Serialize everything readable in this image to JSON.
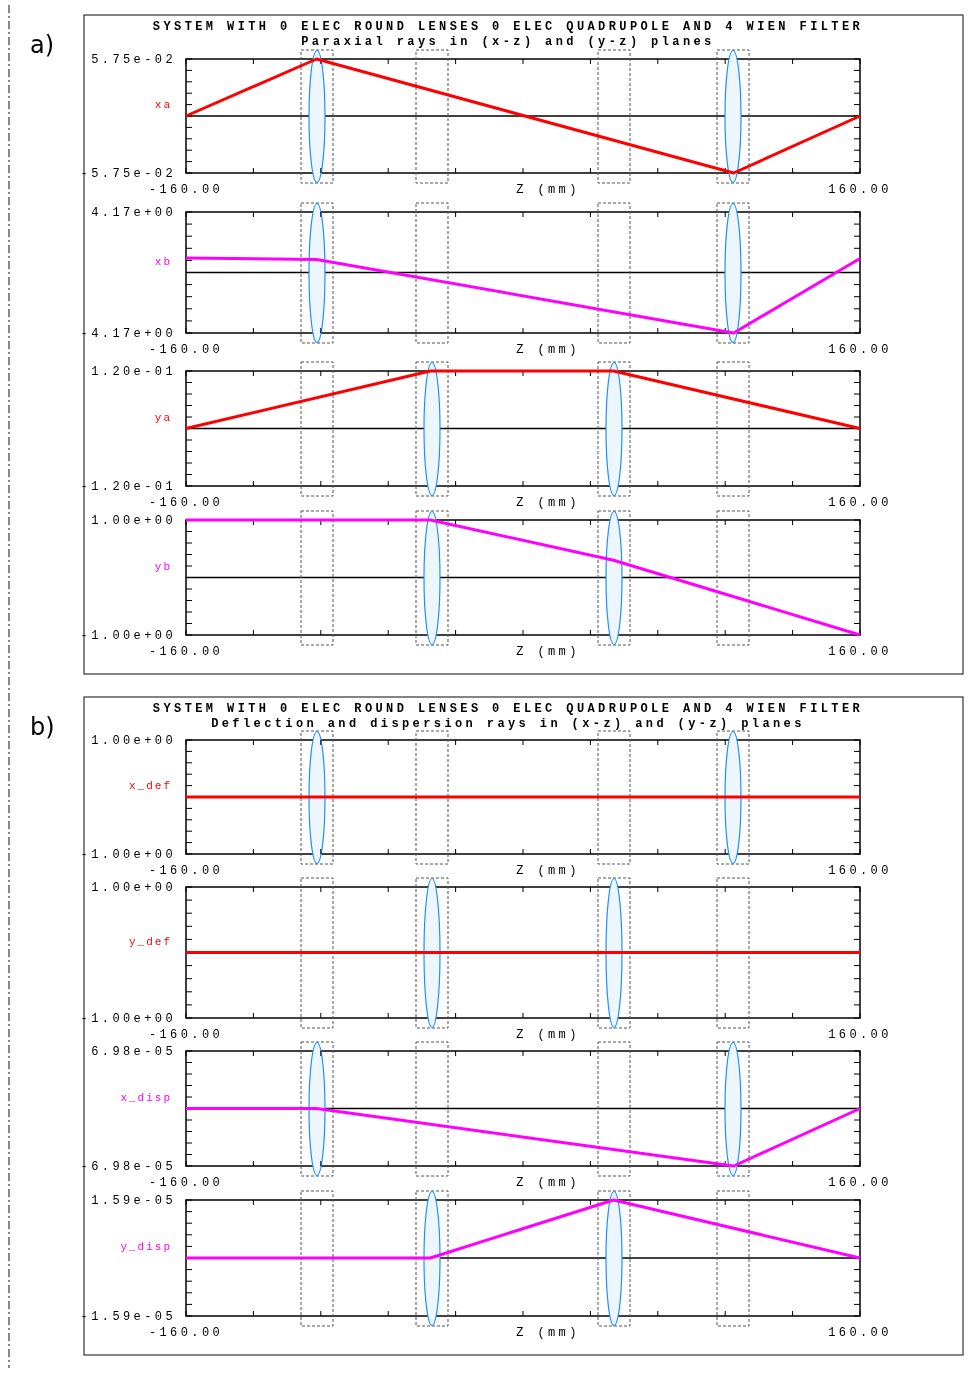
{
  "chart_data": [
    {
      "type": "line",
      "title": "SYSTEM WITH 0 ELEC ROUND LENSES  0 ELEC QUADRUPOLE AND 4 WIEN FILTER",
      "subtitle": "Paraxial rays in (x-z) and (y-z) planes",
      "annotations": [
        "a)"
      ],
      "xlabel": "Z (mm)",
      "xlim": [
        -160,
        160
      ],
      "xticks": [
        {
          "value": -160,
          "label": "-160.00"
        },
        {
          "value": -128,
          "label": null
        },
        {
          "value": -96,
          "label": null
        },
        {
          "value": -64,
          "label": null
        },
        {
          "value": -32,
          "label": null
        },
        {
          "value": 0,
          "label": null
        },
        {
          "value": 32,
          "label": null
        },
        {
          "value": 64,
          "label": null
        },
        {
          "value": 96,
          "label": null
        },
        {
          "value": 128,
          "label": null
        },
        {
          "value": 160,
          "label": "160.00"
        }
      ],
      "ylim": [
        -0.0575,
        0.0575
      ],
      "yticks": [
        {
          "value": -0.0575,
          "label": "-5.75e-02"
        },
        {
          "value": -0.046,
          "label": null
        },
        {
          "value": -0.0345,
          "label": null
        },
        {
          "value": -0.023,
          "label": null
        },
        {
          "value": -0.0115,
          "label": null
        },
        {
          "value": 0,
          "label": null
        },
        {
          "value": 0.0115,
          "label": null
        },
        {
          "value": 0.023,
          "label": null
        },
        {
          "value": 0.0345,
          "label": null
        },
        {
          "value": 0.046,
          "label": null
        },
        {
          "value": 0.0575,
          "label": "5.75e-02"
        }
      ],
      "series": [
        {
          "name": "xa",
          "color": "#ff0000",
          "x": [
            -160,
            -98,
            100,
            160
          ],
          "values": [
            0,
            0.0575,
            -0.0575,
            0
          ]
        }
      ]
    },
    {
      "type": "line",
      "xlabel": "Z (mm)",
      "xlim": [
        -160,
        160
      ],
      "xticks": [
        {
          "value": -160,
          "label": "-160.00"
        },
        {
          "value": -128,
          "label": null
        },
        {
          "value": -96,
          "label": null
        },
        {
          "value": -64,
          "label": null
        },
        {
          "value": -32,
          "label": null
        },
        {
          "value": 0,
          "label": null
        },
        {
          "value": 32,
          "label": null
        },
        {
          "value": 64,
          "label": null
        },
        {
          "value": 96,
          "label": null
        },
        {
          "value": 128,
          "label": null
        },
        {
          "value": 160,
          "label": "160.00"
        }
      ],
      "ylim": [
        -4.17,
        4.17
      ],
      "yticks": [
        {
          "value": -4.17,
          "label": "-4.17e+00"
        },
        {
          "value": -3.336,
          "label": null
        },
        {
          "value": -2.502,
          "label": null
        },
        {
          "value": -1.668,
          "label": null
        },
        {
          "value": -0.834,
          "label": null
        },
        {
          "value": 0,
          "label": null
        },
        {
          "value": 0.834,
          "label": null
        },
        {
          "value": 1.668,
          "label": null
        },
        {
          "value": 2.502,
          "label": null
        },
        {
          "value": 3.336,
          "label": null
        },
        {
          "value": 4.17,
          "label": "4.17e+00"
        }
      ],
      "series": [
        {
          "name": "xb",
          "color": "#ff00ff",
          "x": [
            -160,
            -98,
            100,
            160
          ],
          "values": [
            1.0,
            0.9,
            -4.17,
            0.96
          ]
        }
      ]
    },
    {
      "type": "line",
      "xlabel": "Z (mm)",
      "xlim": [
        -160,
        160
      ],
      "xticks": [
        {
          "value": -160,
          "label": "-160.00"
        },
        {
          "value": -128,
          "label": null
        },
        {
          "value": -96,
          "label": null
        },
        {
          "value": -64,
          "label": null
        },
        {
          "value": -32,
          "label": null
        },
        {
          "value": 0,
          "label": null
        },
        {
          "value": 32,
          "label": null
        },
        {
          "value": 64,
          "label": null
        },
        {
          "value": 96,
          "label": null
        },
        {
          "value": 128,
          "label": null
        },
        {
          "value": 160,
          "label": "160.00"
        }
      ],
      "ylim": [
        -0.12,
        0.12
      ],
      "yticks": [
        {
          "value": -0.12,
          "label": "-1.20e-01"
        },
        {
          "value": -0.096,
          "label": null
        },
        {
          "value": -0.072,
          "label": null
        },
        {
          "value": -0.048,
          "label": null
        },
        {
          "value": -0.024,
          "label": null
        },
        {
          "value": 0,
          "label": null
        },
        {
          "value": 0.024,
          "label": null
        },
        {
          "value": 0.048,
          "label": null
        },
        {
          "value": 0.072,
          "label": null
        },
        {
          "value": 0.096,
          "label": null
        },
        {
          "value": 0.12,
          "label": "1.20e-01"
        }
      ],
      "series": [
        {
          "name": "ya",
          "color": "#ff0000",
          "x": [
            -160,
            -44,
            43,
            160
          ],
          "values": [
            0,
            0.12,
            0.12,
            0
          ]
        }
      ]
    },
    {
      "type": "line",
      "xlabel": "Z (mm)",
      "xlim": [
        -160,
        160
      ],
      "xticks": [
        {
          "value": -160,
          "label": "-160.00"
        },
        {
          "value": -128,
          "label": null
        },
        {
          "value": -96,
          "label": null
        },
        {
          "value": -64,
          "label": null
        },
        {
          "value": -32,
          "label": null
        },
        {
          "value": 0,
          "label": null
        },
        {
          "value": 32,
          "label": null
        },
        {
          "value": 64,
          "label": null
        },
        {
          "value": 96,
          "label": null
        },
        {
          "value": 128,
          "label": null
        },
        {
          "value": 160,
          "label": "160.00"
        }
      ],
      "ylim": [
        -1.0,
        1.0
      ],
      "yticks": [
        {
          "value": -1.0,
          "label": "-1.00e+00"
        },
        {
          "value": -0.8,
          "label": null
        },
        {
          "value": -0.6,
          "label": null
        },
        {
          "value": -0.4,
          "label": null
        },
        {
          "value": -0.2,
          "label": null
        },
        {
          "value": 0,
          "label": null
        },
        {
          "value": 0.2,
          "label": null
        },
        {
          "value": 0.4,
          "label": null
        },
        {
          "value": 0.6,
          "label": null
        },
        {
          "value": 0.8,
          "label": null
        },
        {
          "value": 1.0,
          "label": "1.00e+00"
        }
      ],
      "series": [
        {
          "name": "yb",
          "color": "#ff00ff",
          "x": [
            -160,
            -44,
            43,
            160
          ],
          "values": [
            1.0,
            1.0,
            0.3,
            -1.0
          ]
        }
      ]
    },
    {
      "type": "line",
      "title": "SYSTEM WITH 0 ELEC ROUND LENSES  0 ELEC QUADRUPOLE AND 4 WIEN FILTER",
      "subtitle": "Deflection and dispersion rays in (x-z) and (y-z) planes",
      "annotations": [
        "b)"
      ],
      "xlabel": "Z (mm)",
      "xlim": [
        -160,
        160
      ],
      "xticks": [
        {
          "value": -160,
          "label": "-160.00"
        },
        {
          "value": -128,
          "label": null
        },
        {
          "value": -96,
          "label": null
        },
        {
          "value": -64,
          "label": null
        },
        {
          "value": -32,
          "label": null
        },
        {
          "value": 0,
          "label": null
        },
        {
          "value": 32,
          "label": null
        },
        {
          "value": 64,
          "label": null
        },
        {
          "value": 96,
          "label": null
        },
        {
          "value": 128,
          "label": null
        },
        {
          "value": 160,
          "label": "160.00"
        }
      ],
      "ylim": [
        -1.0,
        1.0
      ],
      "yticks": [
        {
          "value": -1.0,
          "label": "-1.00e+00"
        },
        {
          "value": -0.8,
          "label": null
        },
        {
          "value": -0.6,
          "label": null
        },
        {
          "value": -0.4,
          "label": null
        },
        {
          "value": -0.2,
          "label": null
        },
        {
          "value": 0,
          "label": null
        },
        {
          "value": 0.2,
          "label": null
        },
        {
          "value": 0.4,
          "label": null
        },
        {
          "value": 0.6,
          "label": null
        },
        {
          "value": 0.8,
          "label": null
        },
        {
          "value": 1.0,
          "label": "1.00e+00"
        }
      ],
      "series": [
        {
          "name": "x_def",
          "color": "#ff0000",
          "x": [
            -160,
            160
          ],
          "values": [
            0,
            0
          ]
        }
      ]
    },
    {
      "type": "line",
      "xlabel": "Z (mm)",
      "xlim": [
        -160,
        160
      ],
      "xticks": [
        {
          "value": -160,
          "label": "-160.00"
        },
        {
          "value": -128,
          "label": null
        },
        {
          "value": -96,
          "label": null
        },
        {
          "value": -64,
          "label": null
        },
        {
          "value": -32,
          "label": null
        },
        {
          "value": 0,
          "label": null
        },
        {
          "value": 32,
          "label": null
        },
        {
          "value": 64,
          "label": null
        },
        {
          "value": 96,
          "label": null
        },
        {
          "value": 128,
          "label": null
        },
        {
          "value": 160,
          "label": "160.00"
        }
      ],
      "ylim": [
        -1.0,
        1.0
      ],
      "yticks": [
        {
          "value": -1.0,
          "label": "-1.00e+00"
        },
        {
          "value": -0.8,
          "label": null
        },
        {
          "value": -0.6,
          "label": null
        },
        {
          "value": -0.4,
          "label": null
        },
        {
          "value": -0.2,
          "label": null
        },
        {
          "value": 0,
          "label": null
        },
        {
          "value": 0.2,
          "label": null
        },
        {
          "value": 0.4,
          "label": null
        },
        {
          "value": 0.6,
          "label": null
        },
        {
          "value": 0.8,
          "label": null
        },
        {
          "value": 1.0,
          "label": "1.00e+00"
        }
      ],
      "series": [
        {
          "name": "y_def",
          "color": "#ff0000",
          "x": [
            -160,
            160
          ],
          "values": [
            0,
            0
          ]
        }
      ]
    },
    {
      "type": "line",
      "xlabel": "Z (mm)",
      "xlim": [
        -160,
        160
      ],
      "xticks": [
        {
          "value": -160,
          "label": "-160.00"
        },
        {
          "value": -128,
          "label": null
        },
        {
          "value": -96,
          "label": null
        },
        {
          "value": -64,
          "label": null
        },
        {
          "value": -32,
          "label": null
        },
        {
          "value": 0,
          "label": null
        },
        {
          "value": 32,
          "label": null
        },
        {
          "value": 64,
          "label": null
        },
        {
          "value": 96,
          "label": null
        },
        {
          "value": 128,
          "label": null
        },
        {
          "value": 160,
          "label": "160.00"
        }
      ],
      "ylim": [
        -6.98e-05,
        6.98e-05
      ],
      "yticks": [
        {
          "value": -6.98e-05,
          "label": "-6.98e-05"
        },
        {
          "value": -5.584e-05,
          "label": null
        },
        {
          "value": -4.188e-05,
          "label": null
        },
        {
          "value": -2.792e-05,
          "label": null
        },
        {
          "value": -1.396e-05,
          "label": null
        },
        {
          "value": 0,
          "label": null
        },
        {
          "value": 1.396e-05,
          "label": null
        },
        {
          "value": 2.792e-05,
          "label": null
        },
        {
          "value": 4.188e-05,
          "label": null
        },
        {
          "value": 5.584e-05,
          "label": null
        },
        {
          "value": 6.98e-05,
          "label": "6.98e-05"
        }
      ],
      "series": [
        {
          "name": "x_disp",
          "color": "#ff00ff",
          "x": [
            -160,
            -98,
            100,
            160
          ],
          "values": [
            0,
            0,
            -6.98e-05,
            0
          ]
        }
      ]
    },
    {
      "type": "line",
      "xlabel": "Z (mm)",
      "xlim": [
        -160,
        160
      ],
      "xticks": [
        {
          "value": -160,
          "label": "-160.00"
        },
        {
          "value": -128,
          "label": null
        },
        {
          "value": -96,
          "label": null
        },
        {
          "value": -64,
          "label": null
        },
        {
          "value": -32,
          "label": null
        },
        {
          "value": 0,
          "label": null
        },
        {
          "value": 32,
          "label": null
        },
        {
          "value": 64,
          "label": null
        },
        {
          "value": 96,
          "label": null
        },
        {
          "value": 128,
          "label": null
        },
        {
          "value": 160,
          "label": "160.00"
        }
      ],
      "ylim": [
        -1.59e-05,
        1.59e-05
      ],
      "yticks": [
        {
          "value": -1.59e-05,
          "label": "-1.59e-05"
        },
        {
          "value": -1.272e-05,
          "label": null
        },
        {
          "value": -9.54e-06,
          "label": null
        },
        {
          "value": -6.36e-06,
          "label": null
        },
        {
          "value": -3.18e-06,
          "label": null
        },
        {
          "value": 0,
          "label": null
        },
        {
          "value": 3.18e-06,
          "label": null
        },
        {
          "value": 6.36e-06,
          "label": null
        },
        {
          "value": 9.54e-06,
          "label": null
        },
        {
          "value": 1.272e-05,
          "label": null
        },
        {
          "value": 1.59e-05,
          "label": "1.59e-05"
        }
      ],
      "series": [
        {
          "name": "y_disp",
          "color": "#ff00ff",
          "x": [
            -160,
            -44,
            43,
            160
          ],
          "values": [
            0,
            0,
            1.59e-05,
            0
          ]
        }
      ]
    }
  ]
}
